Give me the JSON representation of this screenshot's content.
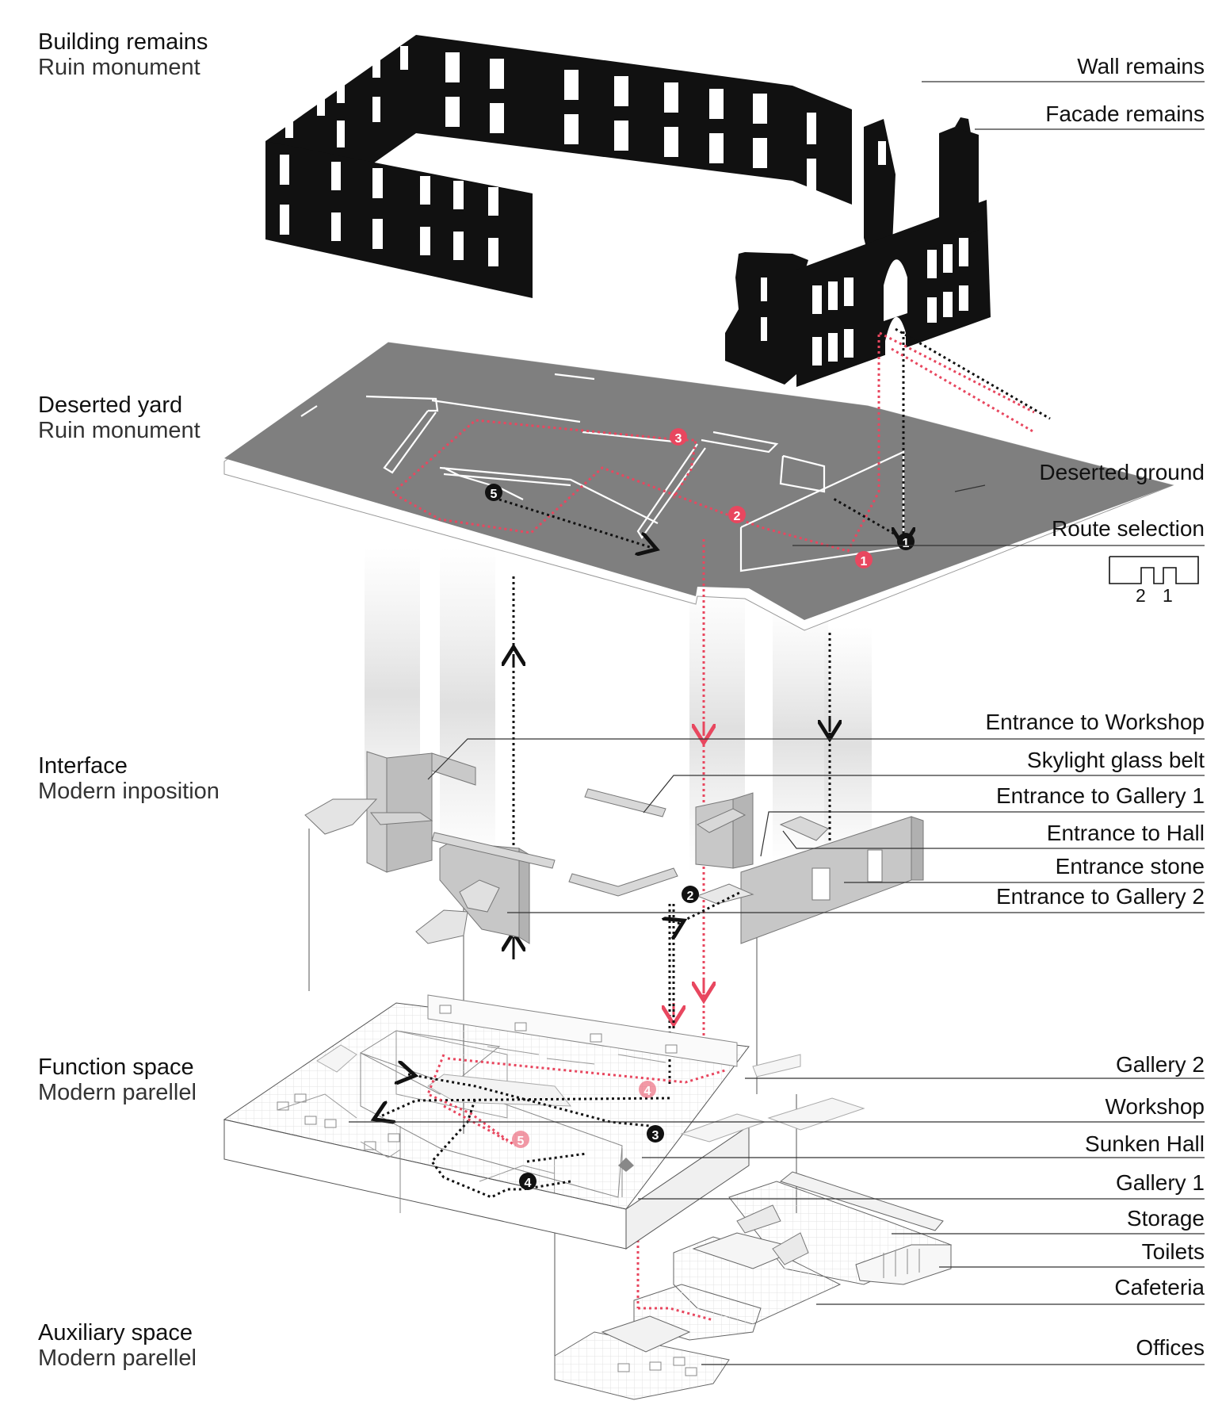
{
  "layers": [
    {
      "title": "Building remains",
      "subtitle": "Ruin monument"
    },
    {
      "title": "Deserted yard",
      "subtitle": "Ruin monument"
    },
    {
      "title": "Interface",
      "subtitle": "Modern inposition"
    },
    {
      "title": "Function space",
      "subtitle": "Modern parellel"
    },
    {
      "title": "Auxiliary space",
      "subtitle": "Modern parellel"
    }
  ],
  "labels": [
    "Wall remains",
    "Facade remains",
    "Deserted ground",
    "Route selection",
    "Entrance to Workshop",
    "Skylight glass belt",
    "Entrance to Gallery 1",
    "Entrance to Hall",
    "Entrance stone",
    "Entrance to Gallery 2",
    "Gallery 2",
    "Workshop",
    "Sunken Hall",
    "Gallery 1",
    "Storage",
    "Toilets",
    "Cafeteria",
    "Offices"
  ],
  "route_numbers": {
    "label_a": "2",
    "label_b": "1"
  },
  "markers": {
    "red_route": [
      "1",
      "2",
      "3"
    ],
    "black_route": [
      "1",
      "5"
    ],
    "interface": [
      "2"
    ],
    "function_space_black": [
      "3",
      "4"
    ],
    "function_space_red": [
      "4",
      "5"
    ]
  },
  "colors": {
    "route_red": "#e8475f",
    "ruin_black": "#111111",
    "ground_gray": "#7f7f7f",
    "wall_gray": "#c7c7c7"
  }
}
